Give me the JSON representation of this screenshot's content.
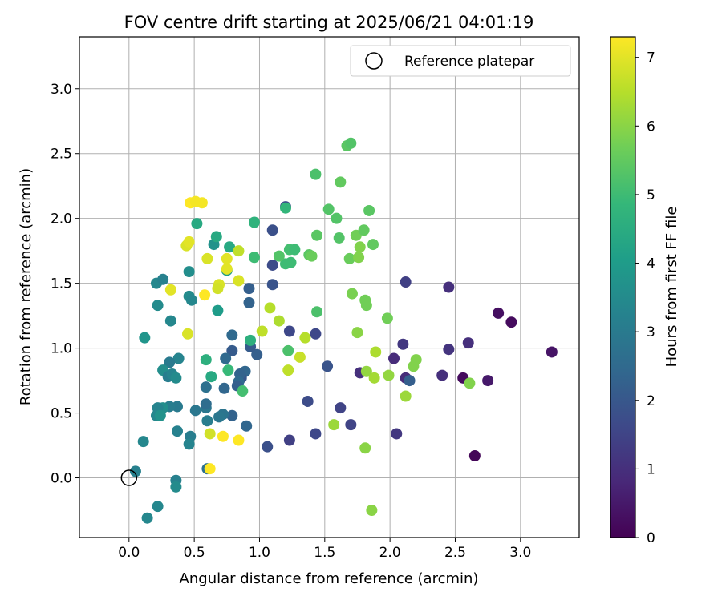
{
  "chart_data": {
    "type": "scatter",
    "title": "FOV centre drift starting at 2025/06/21 04:01:19",
    "xlabel": "Angular distance from reference (arcmin)",
    "ylabel": "Rotation from reference (arcmin)",
    "xlim": [
      -0.38,
      3.45
    ],
    "ylim": [
      -0.46,
      3.4
    ],
    "xticks": [
      "0.0",
      "0.5",
      "1.0",
      "1.5",
      "2.0",
      "2.5",
      "3.0"
    ],
    "xtick_values": [
      0,
      0.5,
      1.0,
      1.5,
      2.0,
      2.5,
      3.0
    ],
    "yticks": [
      "0.0",
      "0.5",
      "1.0",
      "1.5",
      "2.0",
      "2.5",
      "3.0"
    ],
    "ytick_values": [
      0,
      0.5,
      1.0,
      1.5,
      2.0,
      2.5,
      3.0
    ],
    "grid": true,
    "legend": {
      "placement": "top-right",
      "entries": [
        "Reference platepar"
      ]
    },
    "reference_point": {
      "x": 0,
      "y": 0
    },
    "colorbar": {
      "label": "Hours from first FF file",
      "range": [
        0,
        7.3
      ],
      "tick_values": [
        0,
        1,
        2,
        3,
        4,
        5,
        6,
        7
      ],
      "ticks": [
        "0",
        "1",
        "2",
        "3",
        "4",
        "5",
        "6",
        "7"
      ],
      "colormap": "viridis",
      "colors": [
        "#440154",
        "#482878",
        "#3e4989",
        "#31688e",
        "#26828e",
        "#1f9e89",
        "#35b779",
        "#6ece58",
        "#b5de2b",
        "#fde725"
      ]
    },
    "points": [
      {
        "x": 3.24,
        "y": 0.97,
        "c": 0.4
      },
      {
        "x": 2.93,
        "y": 1.2,
        "c": 0.2
      },
      {
        "x": 2.83,
        "y": 1.27,
        "c": 0.3
      },
      {
        "x": 2.65,
        "y": 0.17,
        "c": 0.1
      },
      {
        "x": 2.56,
        "y": 0.77,
        "c": 0.2
      },
      {
        "x": 2.75,
        "y": 0.75,
        "c": 0.5
      },
      {
        "x": 2.6,
        "y": 1.04,
        "c": 1.0
      },
      {
        "x": 2.45,
        "y": 1.47,
        "c": 1.0
      },
      {
        "x": 2.45,
        "y": 0.99,
        "c": 1.1
      },
      {
        "x": 2.4,
        "y": 0.79,
        "c": 1.0
      },
      {
        "x": 2.12,
        "y": 1.51,
        "c": 1.4
      },
      {
        "x": 2.1,
        "y": 1.03,
        "c": 1.2
      },
      {
        "x": 2.03,
        "y": 0.92,
        "c": 0.9
      },
      {
        "x": 2.12,
        "y": 0.77,
        "c": 0.9
      },
      {
        "x": 2.15,
        "y": 0.75,
        "c": 2.2
      },
      {
        "x": 2.05,
        "y": 0.34,
        "c": 1.2
      },
      {
        "x": 1.77,
        "y": 0.81,
        "c": 1.0
      },
      {
        "x": 1.7,
        "y": 0.41,
        "c": 1.5
      },
      {
        "x": 1.62,
        "y": 0.54,
        "c": 1.5
      },
      {
        "x": 1.52,
        "y": 0.86,
        "c": 1.9
      },
      {
        "x": 1.43,
        "y": 0.34,
        "c": 1.6
      },
      {
        "x": 1.37,
        "y": 0.59,
        "c": 1.7
      },
      {
        "x": 1.43,
        "y": 1.11,
        "c": 1.6
      },
      {
        "x": 1.23,
        "y": 1.13,
        "c": 1.6
      },
      {
        "x": 1.23,
        "y": 0.29,
        "c": 1.4
      },
      {
        "x": 1.06,
        "y": 0.24,
        "c": 1.8
      },
      {
        "x": 1.1,
        "y": 1.49,
        "c": 1.9
      },
      {
        "x": 1.1,
        "y": 1.64,
        "c": 1.7
      },
      {
        "x": 1.1,
        "y": 1.91,
        "c": 1.8
      },
      {
        "x": 1.2,
        "y": 2.09,
        "c": 1.8
      },
      {
        "x": 0.98,
        "y": 0.95,
        "c": 2.2
      },
      {
        "x": 0.93,
        "y": 1.01,
        "c": 2.1
      },
      {
        "x": 0.92,
        "y": 1.35,
        "c": 2.3
      },
      {
        "x": 0.92,
        "y": 1.46,
        "c": 2.2
      },
      {
        "x": 0.9,
        "y": 0.4,
        "c": 2.4
      },
      {
        "x": 0.89,
        "y": 0.82,
        "c": 2.4
      },
      {
        "x": 0.86,
        "y": 0.77,
        "c": 2.0
      },
      {
        "x": 0.85,
        "y": 0.8,
        "c": 2.3
      },
      {
        "x": 0.84,
        "y": 0.74,
        "c": 2.5
      },
      {
        "x": 0.83,
        "y": 0.71,
        "c": 2.2
      },
      {
        "x": 0.79,
        "y": 0.98,
        "c": 2.1
      },
      {
        "x": 0.79,
        "y": 1.1,
        "c": 2.5
      },
      {
        "x": 0.79,
        "y": 0.48,
        "c": 2.3
      },
      {
        "x": 0.74,
        "y": 0.92,
        "c": 2.5
      },
      {
        "x": 0.73,
        "y": 0.69,
        "c": 2.4
      },
      {
        "x": 0.72,
        "y": 0.49,
        "c": 2.8
      },
      {
        "x": 0.69,
        "y": 0.47,
        "c": 2.9
      },
      {
        "x": 0.6,
        "y": 0.07,
        "c": 2.7
      },
      {
        "x": 0.59,
        "y": 0.54,
        "c": 2.9
      },
      {
        "x": 0.59,
        "y": 0.57,
        "c": 2.6
      },
      {
        "x": 0.59,
        "y": 0.7,
        "c": 2.7
      },
      {
        "x": 0.6,
        "y": 0.44,
        "c": 3.1
      },
      {
        "x": 0.51,
        "y": 0.52,
        "c": 2.9
      },
      {
        "x": 0.47,
        "y": 0.32,
        "c": 3.1
      },
      {
        "x": 0.46,
        "y": 0.26,
        "c": 3.3
      },
      {
        "x": 0.37,
        "y": 0.36,
        "c": 3.2
      },
      {
        "x": 0.37,
        "y": 0.55,
        "c": 3.0
      },
      {
        "x": 0.36,
        "y": -0.02,
        "c": 3.2
      },
      {
        "x": 0.36,
        "y": -0.07,
        "c": 3.5
      },
      {
        "x": 0.31,
        "y": 0.55,
        "c": 3.1
      },
      {
        "x": 0.26,
        "y": 0.54,
        "c": 3.6
      },
      {
        "x": 0.22,
        "y": 0.54,
        "c": 3.3
      },
      {
        "x": 0.21,
        "y": 0.48,
        "c": 3.4
      },
      {
        "x": 0.24,
        "y": 0.48,
        "c": 3.7
      },
      {
        "x": 0.22,
        "y": -0.22,
        "c": 3.4
      },
      {
        "x": 0.14,
        "y": -0.31,
        "c": 3.4
      },
      {
        "x": 0.11,
        "y": 0.28,
        "c": 3.4
      },
      {
        "x": 0.05,
        "y": 0.05,
        "c": 3.2
      },
      {
        "x": 0.12,
        "y": 1.08,
        "c": 3.8
      },
      {
        "x": 0.22,
        "y": 1.33,
        "c": 3.5
      },
      {
        "x": 0.21,
        "y": 1.5,
        "c": 3.4
      },
      {
        "x": 0.26,
        "y": 1.53,
        "c": 3.2
      },
      {
        "x": 0.32,
        "y": 1.21,
        "c": 3.4
      },
      {
        "x": 0.38,
        "y": 0.92,
        "c": 3.3
      },
      {
        "x": 0.31,
        "y": 0.89,
        "c": 3.0
      },
      {
        "x": 0.26,
        "y": 0.83,
        "c": 3.6
      },
      {
        "x": 0.3,
        "y": 0.78,
        "c": 3.1
      },
      {
        "x": 0.33,
        "y": 0.8,
        "c": 3.3
      },
      {
        "x": 0.36,
        "y": 0.77,
        "c": 3.5
      },
      {
        "x": 0.46,
        "y": 1.4,
        "c": 3.5
      },
      {
        "x": 0.48,
        "y": 1.37,
        "c": 3.4
      },
      {
        "x": 0.46,
        "y": 1.59,
        "c": 3.6
      },
      {
        "x": 0.65,
        "y": 1.8,
        "c": 3.7
      },
      {
        "x": 0.67,
        "y": 1.86,
        "c": 4.4
      },
      {
        "x": 0.68,
        "y": 1.29,
        "c": 4.0
      },
      {
        "x": 0.75,
        "y": 1.6,
        "c": 4.0
      },
      {
        "x": 0.77,
        "y": 1.78,
        "c": 4.4
      },
      {
        "x": 0.52,
        "y": 1.96,
        "c": 4.4
      },
      {
        "x": 0.59,
        "y": 0.91,
        "c": 4.6
      },
      {
        "x": 0.63,
        "y": 0.78,
        "c": 4.4
      },
      {
        "x": 0.76,
        "y": 0.83,
        "c": 4.9
      },
      {
        "x": 0.87,
        "y": 0.67,
        "c": 5.1
      },
      {
        "x": 0.93,
        "y": 1.06,
        "c": 4.6
      },
      {
        "x": 0.96,
        "y": 1.7,
        "c": 5.0
      },
      {
        "x": 0.96,
        "y": 1.97,
        "c": 4.7
      },
      {
        "x": 1.2,
        "y": 2.08,
        "c": 4.8
      },
      {
        "x": 1.22,
        "y": 0.98,
        "c": 5.2
      },
      {
        "x": 1.2,
        "y": 1.65,
        "c": 5.0
      },
      {
        "x": 1.24,
        "y": 1.66,
        "c": 5.0
      },
      {
        "x": 1.23,
        "y": 1.76,
        "c": 5.1
      },
      {
        "x": 1.27,
        "y": 1.76,
        "c": 5.0
      },
      {
        "x": 1.15,
        "y": 1.71,
        "c": 5.3
      },
      {
        "x": 1.38,
        "y": 1.72,
        "c": 5.4
      },
      {
        "x": 1.4,
        "y": 1.71,
        "c": 5.6
      },
      {
        "x": 1.44,
        "y": 1.87,
        "c": 5.4
      },
      {
        "x": 1.44,
        "y": 1.28,
        "c": 5.2
      },
      {
        "x": 1.43,
        "y": 2.34,
        "c": 5.2
      },
      {
        "x": 1.53,
        "y": 2.07,
        "c": 5.3
      },
      {
        "x": 1.59,
        "y": 2.0,
        "c": 5.3
      },
      {
        "x": 1.61,
        "y": 1.85,
        "c": 5.3
      },
      {
        "x": 1.62,
        "y": 2.28,
        "c": 5.5
      },
      {
        "x": 1.67,
        "y": 2.56,
        "c": 5.4
      },
      {
        "x": 1.7,
        "y": 2.58,
        "c": 5.3
      },
      {
        "x": 1.69,
        "y": 1.69,
        "c": 5.6
      },
      {
        "x": 1.74,
        "y": 1.87,
        "c": 5.7
      },
      {
        "x": 1.76,
        "y": 1.7,
        "c": 5.9
      },
      {
        "x": 1.77,
        "y": 1.78,
        "c": 5.9
      },
      {
        "x": 1.8,
        "y": 1.91,
        "c": 5.5
      },
      {
        "x": 1.84,
        "y": 2.06,
        "c": 5.4
      },
      {
        "x": 1.87,
        "y": 1.8,
        "c": 5.5
      },
      {
        "x": 1.71,
        "y": 1.42,
        "c": 5.8
      },
      {
        "x": 1.81,
        "y": 1.37,
        "c": 5.7
      },
      {
        "x": 1.82,
        "y": 1.33,
        "c": 5.7
      },
      {
        "x": 1.75,
        "y": 1.12,
        "c": 6.0
      },
      {
        "x": 1.98,
        "y": 1.23,
        "c": 5.7
      },
      {
        "x": 1.89,
        "y": 0.97,
        "c": 6.4
      },
      {
        "x": 1.82,
        "y": 0.82,
        "c": 6.1
      },
      {
        "x": 1.88,
        "y": 0.77,
        "c": 6.3
      },
      {
        "x": 1.99,
        "y": 0.79,
        "c": 6.1
      },
      {
        "x": 2.18,
        "y": 0.86,
        "c": 5.9
      },
      {
        "x": 2.2,
        "y": 0.91,
        "c": 5.9
      },
      {
        "x": 2.12,
        "y": 0.63,
        "c": 6.2
      },
      {
        "x": 2.61,
        "y": 0.73,
        "c": 5.9
      },
      {
        "x": 1.81,
        "y": 0.23,
        "c": 6.0
      },
      {
        "x": 1.86,
        "y": -0.25,
        "c": 6.0
      },
      {
        "x": 1.57,
        "y": 0.41,
        "c": 6.2
      },
      {
        "x": 1.35,
        "y": 1.08,
        "c": 6.5
      },
      {
        "x": 1.31,
        "y": 0.93,
        "c": 6.7
      },
      {
        "x": 1.22,
        "y": 0.83,
        "c": 6.6
      },
      {
        "x": 1.15,
        "y": 1.21,
        "c": 6.4
      },
      {
        "x": 1.08,
        "y": 1.31,
        "c": 6.5
      },
      {
        "x": 1.02,
        "y": 1.13,
        "c": 6.6
      },
      {
        "x": 0.84,
        "y": 1.75,
        "c": 6.6
      },
      {
        "x": 0.84,
        "y": 1.52,
        "c": 6.9
      },
      {
        "x": 0.75,
        "y": 1.69,
        "c": 7.0
      },
      {
        "x": 0.75,
        "y": 1.61,
        "c": 7.0
      },
      {
        "x": 0.69,
        "y": 1.49,
        "c": 6.9
      },
      {
        "x": 0.68,
        "y": 1.46,
        "c": 6.8
      },
      {
        "x": 0.6,
        "y": 1.69,
        "c": 6.9
      },
      {
        "x": 0.58,
        "y": 1.41,
        "c": 7.3
      },
      {
        "x": 0.62,
        "y": 0.34,
        "c": 6.8
      },
      {
        "x": 0.72,
        "y": 0.32,
        "c": 7.3
      },
      {
        "x": 0.84,
        "y": 0.29,
        "c": 7.3
      },
      {
        "x": 0.62,
        "y": 0.07,
        "c": 7.3
      },
      {
        "x": 0.45,
        "y": 1.11,
        "c": 6.9
      },
      {
        "x": 0.32,
        "y": 1.45,
        "c": 7.0
      },
      {
        "x": 0.44,
        "y": 1.79,
        "c": 6.9
      },
      {
        "x": 0.46,
        "y": 1.82,
        "c": 7.0
      },
      {
        "x": 0.47,
        "y": 2.12,
        "c": 7.3
      },
      {
        "x": 0.51,
        "y": 2.13,
        "c": 7.2
      },
      {
        "x": 0.56,
        "y": 2.12,
        "c": 7.2
      }
    ]
  }
}
